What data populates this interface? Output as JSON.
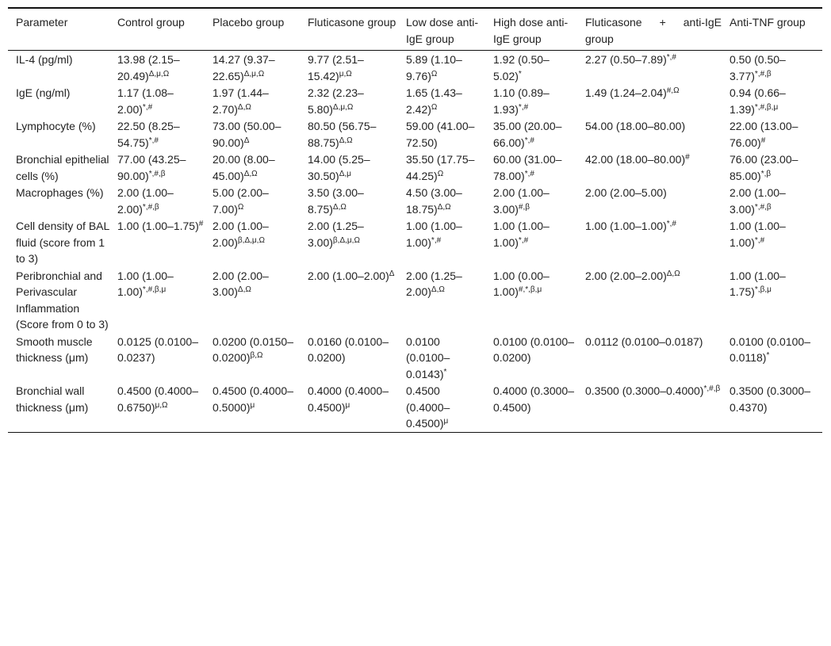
{
  "headers": [
    "Parameter",
    "Control group",
    "Placebo group",
    "Fluticasone group",
    "Low dose anti-IgE group",
    "High dose anti-IgE group",
    "Fluticasone + anti-IgE group",
    "Anti-TNF group"
  ],
  "rows": [
    {
      "param": "IL-4 (pg/ml)",
      "cells": [
        {
          "v": "13.98 (2.15–20.49)",
          "s": "Δ,μ,Ω"
        },
        {
          "v": "14.27 (9.37–22.65)",
          "s": "Δ,μ,Ω"
        },
        {
          "v": "9.77 (2.51–15.42)",
          "s": "μ,Ω"
        },
        {
          "v": "5.89 (1.10–9.76)",
          "s": "Ω"
        },
        {
          "v": "1.92 (0.50–5.02)",
          "s": "*"
        },
        {
          "v": "2.27 (0.50–7.89)",
          "s": "*,#"
        },
        {
          "v": "0.50 (0.50–3.77)",
          "s": "*,#,β"
        }
      ]
    },
    {
      "param": "IgE (ng/ml)",
      "cells": [
        {
          "v": "1.17 (1.08–2.00)",
          "s": "*,#"
        },
        {
          "v": "1.97 (1.44–2.70)",
          "s": "Δ,Ω"
        },
        {
          "v": "2.32 (2.23–5.80)",
          "s": "Δ,μ,Ω"
        },
        {
          "v": "1.65 (1.43–2.42)",
          "s": "Ω"
        },
        {
          "v": "1.10 (0.89–1.93)",
          "s": "*,#"
        },
        {
          "v": "1.49 (1.24–2.04)",
          "s": "#,Ω"
        },
        {
          "v": "0.94 (0.66–1.39)",
          "s": "*,#,β,μ"
        }
      ]
    },
    {
      "param": "Lymphocyte (%)",
      "cells": [
        {
          "v": "22.50 (8.25–54.75)",
          "s": "*,#"
        },
        {
          "v": "73.00 (50.00–90.00)",
          "s": "Δ"
        },
        {
          "v": "80.50 (56.75–88.75)",
          "s": "Δ,Ω"
        },
        {
          "v": "59.00 (41.00–72.50)",
          "s": ""
        },
        {
          "v": "35.00 (20.00–66.00)",
          "s": "*,#"
        },
        {
          "v": "54.00 (18.00–80.00)",
          "s": ""
        },
        {
          "v": "22.00 (13.00–76.00)",
          "s": "#"
        }
      ]
    },
    {
      "param": "Bronchial epithelial cells (%)",
      "cells": [
        {
          "v": "77.00 (43.25–90.00)",
          "s": "*,#,β"
        },
        {
          "v": "20.00 (8.00–45.00)",
          "s": "Δ,Ω"
        },
        {
          "v": "14.00 (5.25–30.50)",
          "s": "Δ,μ"
        },
        {
          "v": "35.50 (17.75–44.25)",
          "s": "Ω"
        },
        {
          "v": "60.00 (31.00–78.00)",
          "s": "*,#"
        },
        {
          "v": "42.00 (18.00–80.00)",
          "s": "#"
        },
        {
          "v": "76.00 (23.00–85.00)",
          "s": "*,β"
        }
      ]
    },
    {
      "param": "Macrophages (%)",
      "cells": [
        {
          "v": "2.00 (1.00–2.00)",
          "s": "*,#,β"
        },
        {
          "v": "5.00 (2.00–7.00)",
          "s": "Ω"
        },
        {
          "v": "3.50 (3.00–8.75)",
          "s": "Δ,Ω"
        },
        {
          "v": "4.50 (3.00–18.75)",
          "s": "Δ,Ω"
        },
        {
          "v": "2.00 (1.00–3.00)",
          "s": "#,β"
        },
        {
          "v": "2.00 (2.00–5.00)",
          "s": ""
        },
        {
          "v": "2.00 (1.00–3.00)",
          "s": "*,#,β"
        }
      ]
    },
    {
      "param": "Cell density of BAL fluid (score from 1 to 3)",
      "cells": [
        {
          "v": "1.00 (1.00–1.75)",
          "s": "#"
        },
        {
          "v": "2.00 (1.00–2.00)",
          "s": "β,Δ,μ,Ω"
        },
        {
          "v": "2.00 (1.25–3.00)",
          "s": "β,Δ,μ,Ω"
        },
        {
          "v": "1.00 (1.00–1.00)",
          "s": "*,#"
        },
        {
          "v": "1.00 (1.00–1.00)",
          "s": "*,#"
        },
        {
          "v": "1.00 (1.00–1.00)",
          "s": "*,#"
        },
        {
          "v": "1.00 (1.00–1.00)",
          "s": "*,#"
        }
      ]
    },
    {
      "param": "Peribronchial and Perivascular Inflammation (Score from 0 to 3)",
      "cells": [
        {
          "v": "1.00 (1.00–1.00)",
          "s": "*,#,β,μ"
        },
        {
          "v": "2.00 (2.00–3.00)",
          "s": "Δ,Ω"
        },
        {
          "v": "2.00 (1.00–2.00)",
          "s": "Δ"
        },
        {
          "v": "2.00 (1.25–2.00)",
          "s": "Δ,Ω"
        },
        {
          "v": "1.00 (0.00–1.00)",
          "s": "#,*,β,μ"
        },
        {
          "v": "2.00 (2.00–2.00)",
          "s": "Δ,Ω"
        },
        {
          "v": "1.00 (1.00–1.75)",
          "s": "*,β,μ"
        }
      ]
    },
    {
      "param": "Smooth muscle thickness (μm)",
      "cells": [
        {
          "v": "0.0125 (0.0100–0.0237)",
          "s": ""
        },
        {
          "v": "0.0200 (0.0150–0.0200)",
          "s": "β,Ω"
        },
        {
          "v": "0.0160 (0.0100–0.0200)",
          "s": ""
        },
        {
          "v": "0.0100 (0.0100–0.0143)",
          "s": "*"
        },
        {
          "v": "0.0100 (0.0100–0.0200)",
          "s": ""
        },
        {
          "v": "0.0112 (0.0100–0.0187)",
          "s": ""
        },
        {
          "v": "0.0100 (0.0100–0.0118)",
          "s": "*"
        }
      ]
    },
    {
      "param": "Bronchial wall thickness (μm)",
      "cells": [
        {
          "v": "0.4500 (0.4000–0.6750)",
          "s": "μ,Ω"
        },
        {
          "v": "0.4500 (0.4000–0.5000)",
          "s": "μ"
        },
        {
          "v": "0.4000 (0.4000–0.4500)",
          "s": "μ"
        },
        {
          "v": "0.4500 (0.4000–0.4500)",
          "s": "μ"
        },
        {
          "v": "0.4000 (0.3000–0.4500)",
          "s": ""
        },
        {
          "v": "0.3500 (0.3000–0.4000)",
          "s": "*,#,β"
        },
        {
          "v": "0.3500 (0.3000–0.4370)",
          "s": ""
        }
      ]
    }
  ]
}
